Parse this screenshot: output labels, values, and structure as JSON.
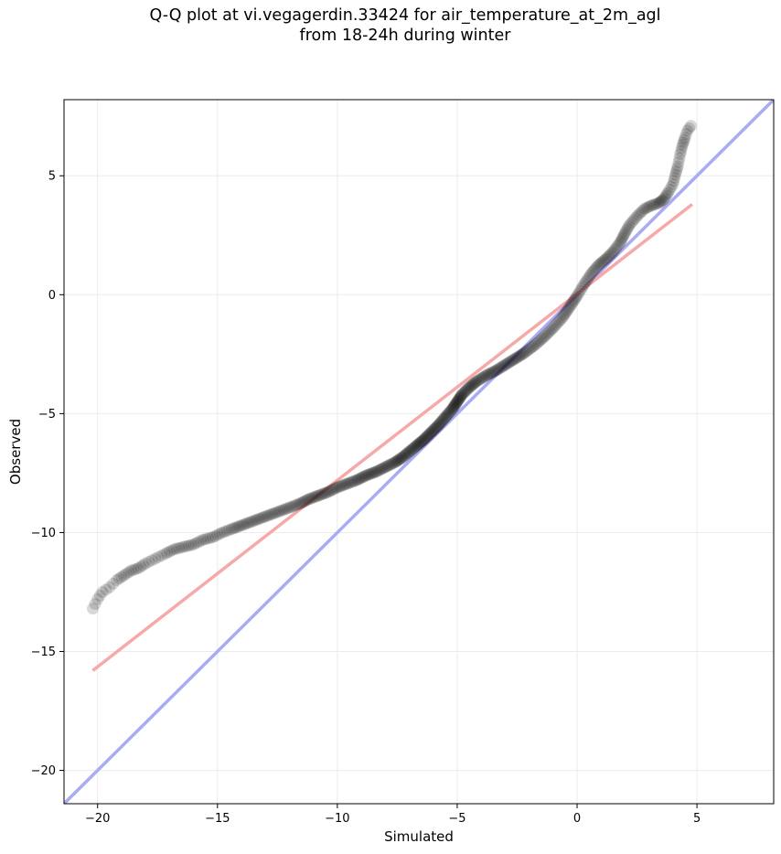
{
  "chart_data": {
    "type": "scatter",
    "title_line1": "Q-Q plot at vi.vegagerdin.33424 for air_temperature_at_2m_agl",
    "title_line2": "from 18-24h during winter",
    "xlabel": "Simulated",
    "ylabel": "Observed",
    "xlim": [
      -21.4,
      8.2
    ],
    "ylim": [
      -21.4,
      8.2
    ],
    "grid": true,
    "xticks": [
      -20,
      -15,
      -10,
      -5,
      0,
      5
    ],
    "yticks": [
      -20,
      -15,
      -10,
      -5,
      0,
      5
    ],
    "xtick_labels": [
      "−20",
      "−15",
      "−10",
      "−5",
      "0",
      "5"
    ],
    "ytick_labels": [
      "−20",
      "−15",
      "−10",
      "−5",
      "0",
      "5"
    ],
    "identity_line": {
      "color": "#aaaaf5",
      "points": [
        [
          -21.4,
          -21.4
        ],
        [
          8.2,
          8.2
        ]
      ]
    },
    "fit_line": {
      "color": "#f5a9a9",
      "points": [
        [
          -20.2,
          -15.8
        ],
        [
          4.8,
          3.8
        ]
      ]
    },
    "point_color": "#000000",
    "point_alpha": 0.15,
    "quantiles": [
      [
        -20.2,
        -13.2
      ],
      [
        -20.0,
        -12.8
      ],
      [
        -19.8,
        -12.5
      ],
      [
        -19.5,
        -12.3
      ],
      [
        -19.2,
        -12.0
      ],
      [
        -18.9,
        -11.8
      ],
      [
        -18.6,
        -11.6
      ],
      [
        -18.3,
        -11.5
      ],
      [
        -18.0,
        -11.3
      ],
      [
        -17.6,
        -11.1
      ],
      [
        -17.2,
        -10.9
      ],
      [
        -16.8,
        -10.7
      ],
      [
        -16.4,
        -10.6
      ],
      [
        -16.0,
        -10.5
      ],
      [
        -15.6,
        -10.3
      ],
      [
        -15.2,
        -10.2
      ],
      [
        -14.8,
        -10.0
      ],
      [
        -14.4,
        -9.85
      ],
      [
        -14.0,
        -9.7
      ],
      [
        -13.6,
        -9.55
      ],
      [
        -13.2,
        -9.4
      ],
      [
        -12.8,
        -9.25
      ],
      [
        -12.4,
        -9.1
      ],
      [
        -12.0,
        -8.95
      ],
      [
        -11.6,
        -8.8
      ],
      [
        -11.2,
        -8.6
      ],
      [
        -10.8,
        -8.45
      ],
      [
        -10.4,
        -8.3
      ],
      [
        -10.0,
        -8.1
      ],
      [
        -9.6,
        -7.95
      ],
      [
        -9.2,
        -7.8
      ],
      [
        -8.8,
        -7.6
      ],
      [
        -8.4,
        -7.45
      ],
      [
        -8.0,
        -7.25
      ],
      [
        -7.6,
        -7.05
      ],
      [
        -7.3,
        -6.85
      ],
      [
        -7.0,
        -6.6
      ],
      [
        -6.7,
        -6.35
      ],
      [
        -6.4,
        -6.1
      ],
      [
        -6.1,
        -5.8
      ],
      [
        -5.8,
        -5.5
      ],
      [
        -5.5,
        -5.15
      ],
      [
        -5.2,
        -4.8
      ],
      [
        -5.0,
        -4.5
      ],
      [
        -4.8,
        -4.2
      ],
      [
        -4.5,
        -3.9
      ],
      [
        -4.2,
        -3.65
      ],
      [
        -3.8,
        -3.4
      ],
      [
        -3.4,
        -3.2
      ],
      [
        -3.0,
        -2.95
      ],
      [
        -2.6,
        -2.7
      ],
      [
        -2.2,
        -2.45
      ],
      [
        -1.8,
        -2.15
      ],
      [
        -1.4,
        -1.8
      ],
      [
        -1.0,
        -1.4
      ],
      [
        -0.6,
        -0.95
      ],
      [
        -0.3,
        -0.5
      ],
      [
        0.0,
        -0.05
      ],
      [
        0.3,
        0.45
      ],
      [
        0.6,
        0.9
      ],
      [
        0.9,
        1.25
      ],
      [
        1.2,
        1.5
      ],
      [
        1.5,
        1.8
      ],
      [
        1.8,
        2.2
      ],
      [
        2.0,
        2.6
      ],
      [
        2.2,
        2.95
      ],
      [
        2.5,
        3.3
      ],
      [
        2.8,
        3.6
      ],
      [
        3.1,
        3.75
      ],
      [
        3.4,
        3.85
      ],
      [
        3.6,
        4.0
      ],
      [
        3.8,
        4.3
      ],
      [
        4.0,
        4.65
      ],
      [
        4.1,
        5.05
      ],
      [
        4.2,
        5.4
      ],
      [
        4.3,
        5.9
      ],
      [
        4.4,
        6.3
      ],
      [
        4.5,
        6.6
      ],
      [
        4.6,
        6.9
      ],
      [
        4.75,
        7.1
      ]
    ]
  }
}
